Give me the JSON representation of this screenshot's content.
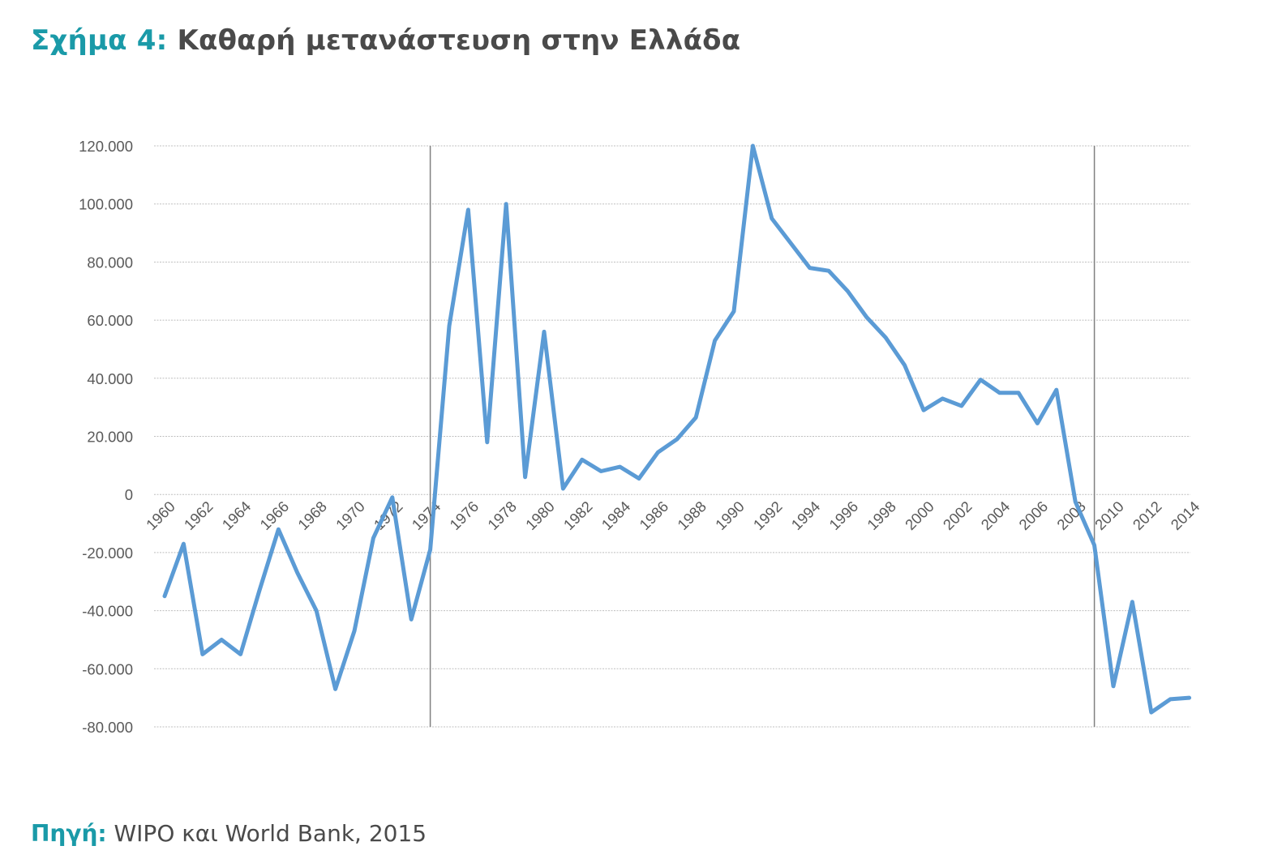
{
  "title": {
    "lead": "Σχήμα 4:",
    "text": "Καθαρή μετανάστευση στην Ελλάδα"
  },
  "source": {
    "lead": "Πηγή:",
    "text": "WIPO και World Bank, 2015"
  },
  "colors": {
    "accent": "#1a9aa8",
    "line": "#5b9bd5",
    "text": "#4a4a4a",
    "grid": "#bfbfbf",
    "marker": "#808080"
  },
  "chart_data": {
    "type": "line",
    "title": "",
    "xlabel": "",
    "ylabel": "",
    "ylim": [
      -80000,
      120000
    ],
    "grid": true,
    "yticks": [
      120000,
      100000,
      80000,
      60000,
      40000,
      20000,
      0,
      -20000,
      -40000,
      -60000,
      -80000
    ],
    "ytick_labels": [
      "120.000",
      "100.000",
      "80.000",
      "60.000",
      "40.000",
      "20.000",
      "0",
      "-20.000",
      "-40.000",
      "-60.000",
      "-80.000"
    ],
    "xtick_labels": [
      "1960",
      "1962",
      "1964",
      "1966",
      "1968",
      "1970",
      "1972",
      "1974",
      "1976",
      "1978",
      "1980",
      "1982",
      "1984",
      "1986",
      "1988",
      "1990",
      "1992",
      "1994",
      "1996",
      "1998",
      "2000",
      "2002",
      "2004",
      "2006",
      "2008",
      "2010",
      "2012",
      "2014"
    ],
    "vertical_markers": [
      1974,
      2009
    ],
    "x": [
      1960,
      1961,
      1962,
      1963,
      1964,
      1965,
      1966,
      1967,
      1968,
      1969,
      1970,
      1971,
      1972,
      1973,
      1974,
      1975,
      1976,
      1977,
      1978,
      1979,
      1980,
      1981,
      1982,
      1983,
      1984,
      1985,
      1986,
      1987,
      1988,
      1989,
      1990,
      1991,
      1992,
      1993,
      1994,
      1995,
      1996,
      1997,
      1998,
      1999,
      2000,
      2001,
      2002,
      2003,
      2004,
      2005,
      2006,
      2007,
      2008,
      2009,
      2010,
      2011,
      2012,
      2013,
      2014
    ],
    "series": [
      {
        "values": [
          -35000,
          -17000,
          -55000,
          -50000,
          -55000,
          -33000,
          -12000,
          -27000,
          -40000,
          -67000,
          -47000,
          -15000,
          -1000,
          -43000,
          -19000,
          58000,
          98000,
          18000,
          100000,
          6000,
          56000,
          2000,
          12000,
          8000,
          9500,
          5500,
          14500,
          19000,
          26500,
          53000,
          63000,
          120000,
          95000,
          86500,
          78000,
          77000,
          70000,
          61000,
          54000,
          44500,
          29000,
          33000,
          30500,
          39500,
          35000,
          35000,
          24500,
          36000,
          -2500,
          -17500,
          -66000,
          -37000,
          -75000,
          -70500,
          -70000
        ]
      }
    ]
  }
}
